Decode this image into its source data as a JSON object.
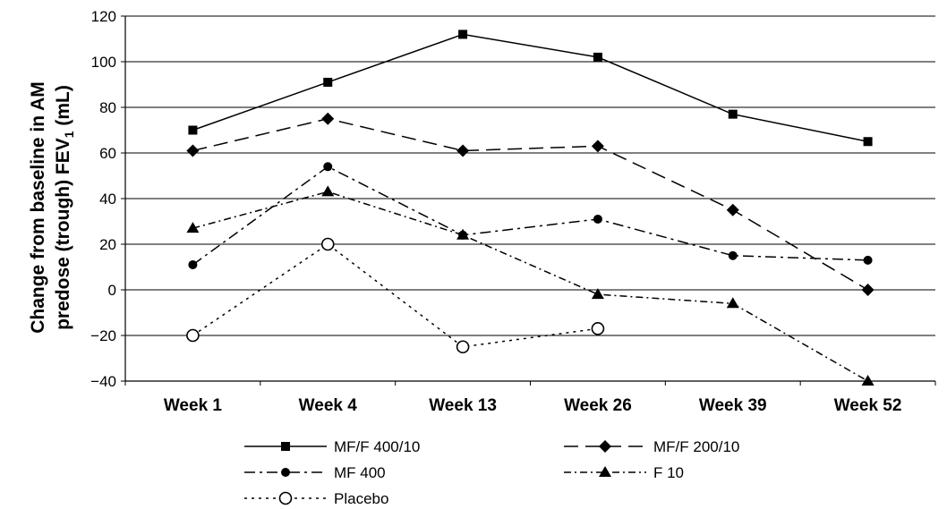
{
  "chart_data": {
    "type": "line",
    "categories": [
      "Week 1",
      "Week 4",
      "Week 13",
      "Week 26",
      "Week 39",
      "Week 52"
    ],
    "ylim": [
      -40,
      120
    ],
    "yticks": [
      -40,
      -20,
      0,
      20,
      40,
      60,
      80,
      100,
      120
    ],
    "ylabel_line1": "Change from baseline in AM",
    "ylabel_line2_pre": "predose (trough) FEV",
    "ylabel_sub": "1",
    "ylabel_line2_post": " (mL)",
    "xlabel": "",
    "grid": "horizontal",
    "legend_placement": "bottom",
    "series": [
      {
        "name": "MF/F 400/10",
        "values": [
          70,
          91,
          112,
          102,
          77,
          65
        ],
        "marker": "square",
        "dash": "solid"
      },
      {
        "name": "MF/F 200/10",
        "values": [
          61,
          75,
          61,
          63,
          35,
          0
        ],
        "marker": "diamond",
        "dash": "dash"
      },
      {
        "name": "MF 400",
        "values": [
          11,
          54,
          24,
          31,
          15,
          13
        ],
        "marker": "circle",
        "dash": "dashdot"
      },
      {
        "name": "F 10",
        "values": [
          27,
          43,
          24,
          -2,
          -6,
          -40
        ],
        "marker": "triangle",
        "dash": "dashdot2"
      },
      {
        "name": "Placebo",
        "values": [
          -20,
          20,
          -25,
          -17,
          null,
          null
        ],
        "marker": "circle-open",
        "dash": "dot"
      }
    ]
  }
}
